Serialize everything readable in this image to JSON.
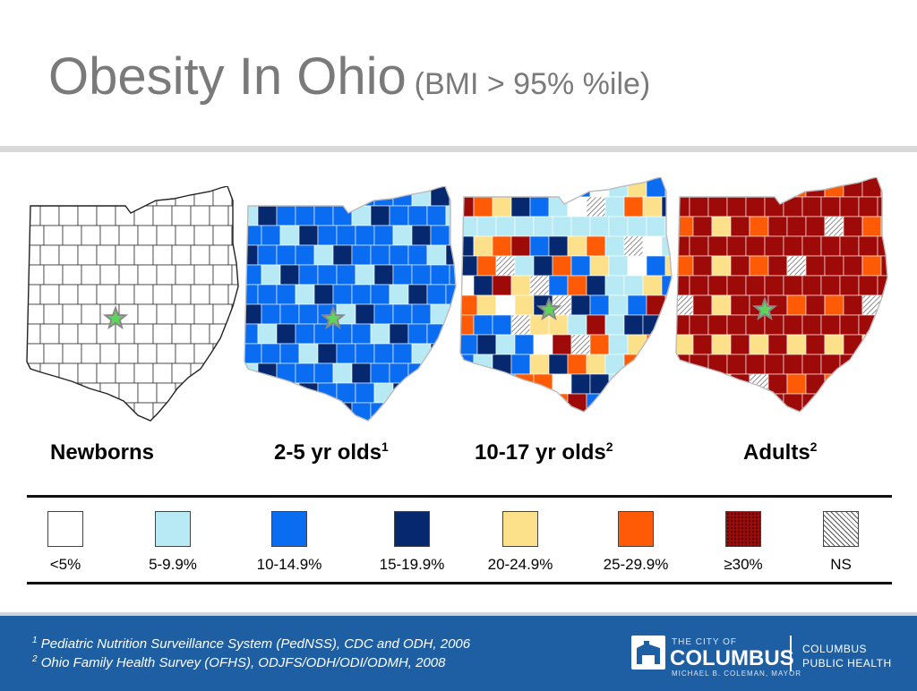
{
  "title": {
    "main": "Obesity In Ohio",
    "sub": "(BMI > 95% %ile)"
  },
  "maps": [
    {
      "label": "Newborns",
      "sup": ""
    },
    {
      "label": "2-5 yr olds",
      "sup": "1"
    },
    {
      "label": "10-17 yr olds",
      "sup": "2"
    },
    {
      "label": "Adults",
      "sup": "2"
    }
  ],
  "legend": [
    {
      "label": "<5%",
      "color": "#ffffff"
    },
    {
      "label": "5-9.9%",
      "color": "#b8eaf6"
    },
    {
      "label": "10-14.9%",
      "color": "#0a6cf0"
    },
    {
      "label": "15-19.9%",
      "color": "#06286e"
    },
    {
      "label": "20-24.9%",
      "color": "#fde08a"
    },
    {
      "label": "25-29.9%",
      "color": "#ff5a06"
    },
    {
      "label": "≥30%",
      "color": "#9e0a08"
    },
    {
      "label": "NS",
      "color": "hatched"
    }
  ],
  "footer": {
    "citation1_num": "1",
    "citation1": "Pediatric Nutrition Surveillance System (PedNSS), CDC and ODH, 2006",
    "citation2_num": "2",
    "citation2": "Ohio Family Health Survey (OFHS), ODJFS/ODH/ODI/ODMH, 2008",
    "logo_small_top": "THE CITY OF",
    "logo_big": "COLUMBUS",
    "logo_small_bottom": "MICHAEL B. COLEMAN, MAYOR",
    "logo_health_1": "COLUMBUS",
    "logo_health_2": "PUBLIC HEALTH"
  }
}
